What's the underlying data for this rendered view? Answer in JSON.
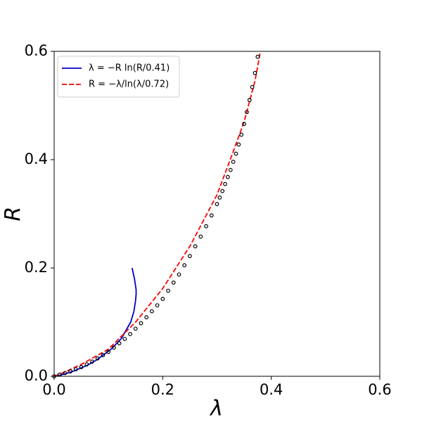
{
  "chart_data": {
    "type": "line",
    "xlabel": "λ",
    "ylabel": "R",
    "xlim": [
      0,
      0.6
    ],
    "ylim": [
      0,
      0.6
    ],
    "xticks": [
      {
        "value": 0,
        "label": "0.0"
      },
      0.2,
      0.4,
      0.6
    ],
    "yticks": [
      {
        "value": 0,
        "label": "0.0"
      },
      0.2,
      0.4,
      0.6
    ],
    "legend": "upper left",
    "series": [
      {
        "name": "λ = −R ln(R/0.41)",
        "color": "#0000cc",
        "style": "solid",
        "x": [
          0,
          0.0106,
          0.022,
          0.037,
          0.0604,
          0.078,
          0.105,
          0.124,
          0.141,
          0.147,
          0.15,
          0.151,
          0.151,
          0.148,
          0.1436
        ],
        "values": [
          0,
          0.002,
          0.005,
          0.01,
          0.02,
          0.03,
          0.05,
          0.07,
          0.1,
          0.12,
          0.14,
          0.151,
          0.16,
          0.18,
          0.2
        ]
      },
      {
        "name": "R = −λ/ln(λ/0.72)",
        "color": "#ff0000",
        "style": "dashed",
        "x": [
          0,
          0.02,
          0.05,
          0.1,
          0.15,
          0.2,
          0.25,
          0.3,
          0.33,
          0.35,
          0.37,
          0.38
        ],
        "values": [
          0,
          0.008,
          0.022,
          0.05,
          0.1,
          0.162,
          0.24,
          0.335,
          0.415,
          0.47,
          0.545,
          0.6
        ]
      },
      {
        "color": "#000000",
        "style": "markers",
        "x": [
          0,
          0.01,
          0.02,
          0.03,
          0.04,
          0.05,
          0.06,
          0.07,
          0.08,
          0.09,
          0.1,
          0.11,
          0.12,
          0.13,
          0.14,
          0.15,
          0.16,
          0.17,
          0.18,
          0.19,
          0.2,
          0.21,
          0.22,
          0.23,
          0.24,
          0.25,
          0.26,
          0.27,
          0.28,
          0.29,
          0.3,
          0.305,
          0.31,
          0.315,
          0.32,
          0.325,
          0.33,
          0.335,
          0.34,
          0.345,
          0.35,
          0.355,
          0.36,
          0.365,
          0.37,
          0.375
        ],
        "values": [
          0,
          0.003,
          0.006,
          0.009,
          0.013,
          0.017,
          0.022,
          0.027,
          0.033,
          0.039,
          0.045,
          0.053,
          0.061,
          0.069,
          0.078,
          0.088,
          0.098,
          0.109,
          0.12,
          0.131,
          0.143,
          0.158,
          0.173,
          0.188,
          0.205,
          0.222,
          0.24,
          0.258,
          0.277,
          0.297,
          0.318,
          0.33,
          0.342,
          0.355,
          0.368,
          0.381,
          0.396,
          0.411,
          0.428,
          0.446,
          0.466,
          0.488,
          0.51,
          0.534,
          0.56,
          0.59
        ]
      }
    ]
  }
}
